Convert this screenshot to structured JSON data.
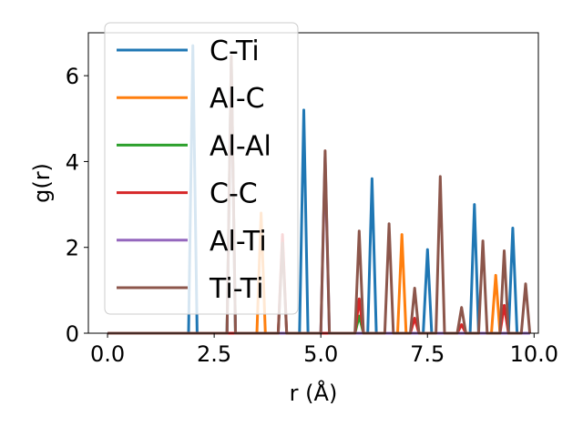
{
  "chart_data": {
    "type": "line",
    "xlabel": "r (Å)",
    "ylabel": "g(r)",
    "xlim": [
      -0.45,
      10.1
    ],
    "ylim": [
      0,
      7.0
    ],
    "xticks": [
      0.0,
      2.5,
      5.0,
      7.5,
      10.0
    ],
    "xtick_labels": [
      "0.0",
      "2.5",
      "5.0",
      "7.5",
      "10.0"
    ],
    "yticks": [
      0,
      2,
      4,
      6
    ],
    "ytick_labels": [
      "0",
      "2",
      "4",
      "6"
    ],
    "grid": false,
    "legend_position": "top-left",
    "x_start": 0.0,
    "x_end": 9.9,
    "peak_base_width": 0.2,
    "series": [
      {
        "name": "C-Ti",
        "color": "#1f77b4",
        "peaks": [
          [
            2.0,
            6.7
          ],
          [
            4.6,
            5.2
          ],
          [
            6.2,
            3.6
          ],
          [
            7.5,
            1.95
          ],
          [
            8.6,
            3.0
          ],
          [
            9.5,
            2.45
          ]
        ]
      },
      {
        "name": "Al-C",
        "color": "#ff7f0e",
        "peaks": [
          [
            3.6,
            2.8
          ],
          [
            6.9,
            2.3
          ],
          [
            9.1,
            1.35
          ]
        ]
      },
      {
        "name": "Al-Al",
        "color": "#2ca02c",
        "peaks": [
          [
            2.9,
            6.4
          ],
          [
            5.9,
            0.4
          ]
        ]
      },
      {
        "name": "C-C",
        "color": "#d62728",
        "peaks": [
          [
            4.1,
            2.3
          ],
          [
            5.9,
            0.8
          ],
          [
            7.2,
            0.35
          ],
          [
            8.3,
            0.2
          ],
          [
            9.3,
            0.65
          ]
        ]
      },
      {
        "name": "Al-Ti",
        "color": "#9467bd",
        "peaks": [
          [
            2.9,
            6.3
          ],
          [
            5.1,
            4.1
          ]
        ]
      },
      {
        "name": "Ti-Ti",
        "color": "#8c564b",
        "peaks": [
          [
            2.9,
            6.45
          ],
          [
            4.1,
            2.1
          ],
          [
            5.1,
            4.25
          ],
          [
            5.9,
            2.38
          ],
          [
            6.6,
            2.55
          ],
          [
            7.2,
            1.05
          ],
          [
            7.8,
            3.65
          ],
          [
            8.8,
            2.15
          ],
          [
            9.3,
            1.92
          ],
          [
            8.3,
            0.6
          ],
          [
            9.8,
            1.15
          ]
        ]
      }
    ]
  }
}
